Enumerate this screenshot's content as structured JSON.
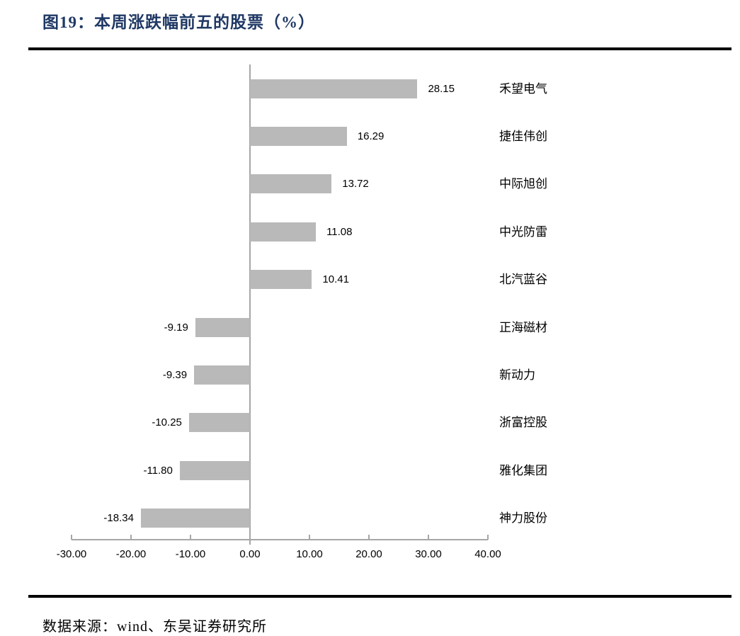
{
  "page": {
    "title": "图19：本周涨跌幅前五的股票（%）",
    "source": "数据来源：wind、东吴证券研究所"
  },
  "colors": {
    "title_navy": "#1F3864",
    "bar_gray": "#B9B9B9",
    "axis_gray": "#A6A6A6",
    "rule_black": "#000000",
    "text_black": "#000000"
  },
  "chart_data": {
    "type": "bar",
    "orientation": "horizontal",
    "title": "图19：本周涨跌幅前五的股票（%）",
    "xlabel": "",
    "ylabel": "",
    "categories": [
      "禾望电气",
      "捷佳伟创",
      "中际旭创",
      "中光防雷",
      "北汽蓝谷",
      "正海磁材",
      "新动力",
      "浙富控股",
      "雅化集团",
      "神力股份"
    ],
    "values": [
      28.15,
      16.29,
      13.72,
      11.08,
      10.41,
      -9.19,
      -9.39,
      -10.25,
      -11.8,
      -18.34
    ],
    "value_labels": [
      "28.15",
      "16.29",
      "13.72",
      "11.08",
      "10.41",
      "-9.19",
      "-9.39",
      "-10.25",
      "-11.80",
      "-18.34"
    ],
    "x_ticks": [
      {
        "value": -30,
        "label": "-30.00"
      },
      {
        "value": -20,
        "label": "-20.00"
      },
      {
        "value": -10,
        "label": "-10.00"
      },
      {
        "value": 0,
        "label": "0.00"
      },
      {
        "value": 10,
        "label": "10.00"
      },
      {
        "value": 20,
        "label": "20.00"
      },
      {
        "value": 30,
        "label": "30.00"
      },
      {
        "value": 40,
        "label": "40.00"
      }
    ],
    "xlim": [
      -30,
      40
    ],
    "grid": false,
    "legend": false
  }
}
